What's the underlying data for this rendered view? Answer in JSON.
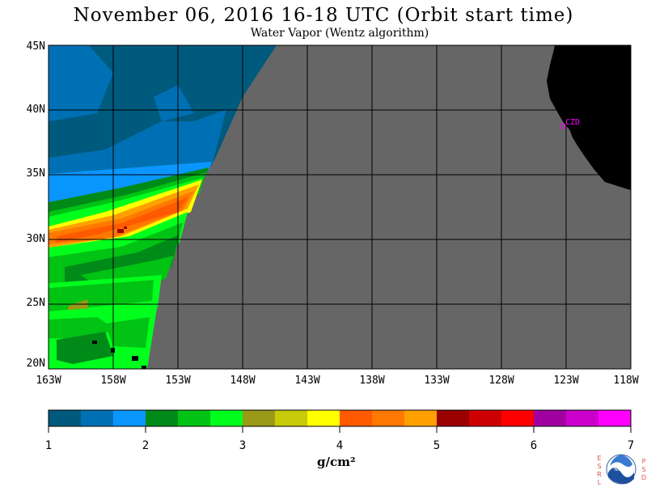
{
  "title": "November 06, 2016  16-18 UTC  (Orbit start time)",
  "subtitle": "Water Vapor (Wentz algorithm)",
  "lat_labels": [
    "45N",
    "40N",
    "35N",
    "30N",
    "25N",
    "20N"
  ],
  "lon_labels": [
    "163W",
    "158W",
    "153W",
    "148W",
    "143W",
    "138W",
    "133W",
    "128W",
    "123W",
    "118W"
  ],
  "station": {
    "label": "CZD",
    "color": "#ff00ff"
  },
  "colorbar": {
    "labels": [
      "1",
      "2",
      "3",
      "4",
      "5",
      "6",
      "7"
    ],
    "unit": "g/cm²",
    "colors": [
      "#005a7e",
      "#0070b4",
      "#0a96ff",
      "#008b18",
      "#00c314",
      "#00ff1c",
      "#9a9a18",
      "#c8cb0a",
      "#ffff00",
      "#ff5a00",
      "#ff7800",
      "#ffa000",
      "#9b0000",
      "#cc0000",
      "#ff0000",
      "#a000a0",
      "#cc00cc",
      "#ff00ff"
    ]
  },
  "map": {
    "no_data_color": "#666666",
    "land_color": "#000000",
    "grid_color": "#000000"
  },
  "logo": {
    "left_letters": "ESRL",
    "right_letters": "PSD",
    "center": "NOAA"
  },
  "colors": {
    "background": "#ffffff"
  }
}
